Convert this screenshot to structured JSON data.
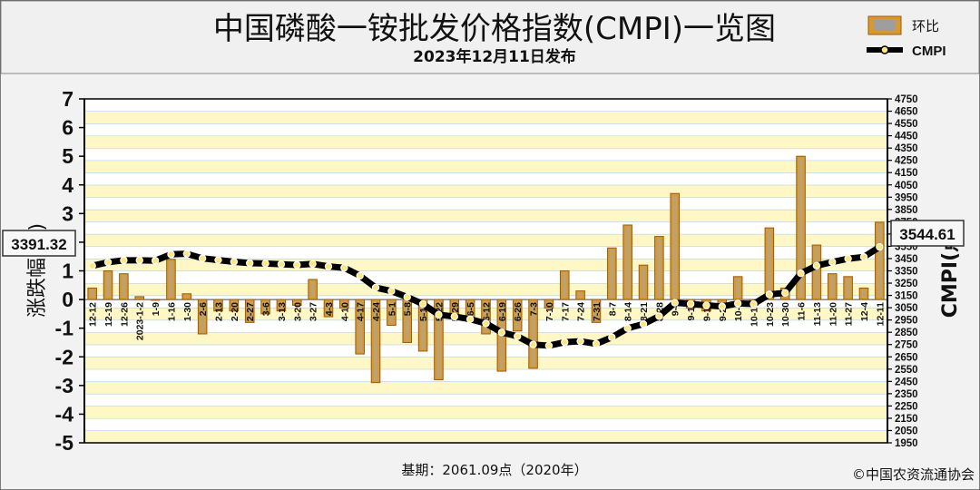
{
  "header": {
    "title": "中国磷酸一铵批发价格指数(CMPI)一览图",
    "subtitle": "2023年12月11日发布"
  },
  "legend": {
    "bar_label": "环比",
    "line_label": "CMPI"
  },
  "footer": {
    "base_note": "基期：2061.09点（2020年）",
    "copyright": "©中国农资流通协会"
  },
  "callouts": {
    "start_value": "3391.32",
    "end_value": "3544.61"
  },
  "colors": {
    "bar": "#d89a2e",
    "bar_edge": "#9a5a12",
    "band": "#fff7c6",
    "line": "#000000",
    "marker": "#ffe680"
  },
  "chart_data": {
    "type": "bar+line",
    "categories": [
      "12-12",
      "12-19",
      "12-26",
      "2023-1-2",
      "1-9",
      "1-16",
      "1-30",
      "2-6",
      "2-13",
      "2-20",
      "2-27",
      "3-6",
      "3-13",
      "3-20",
      "3-27",
      "4-3",
      "4-10",
      "4-17",
      "4-24",
      "5-1",
      "5-8",
      "5-15",
      "5-22",
      "5-29",
      "6-5",
      "6-12",
      "6-19",
      "6-26",
      "7-3",
      "7-10",
      "7-17",
      "7-24",
      "7-31",
      "8-7",
      "8-14",
      "8-21",
      "8-28",
      "9-4",
      "9-11",
      "9-18",
      "9-25",
      "10-9",
      "10-16",
      "10-23",
      "10-30",
      "11-6",
      "11-13",
      "11-20",
      "11-27",
      "12-4",
      "12-11"
    ],
    "series": [
      {
        "name": "环比",
        "axis": "left",
        "values": [
          0.4,
          1.0,
          0.9,
          0.1,
          0.0,
          1.4,
          0.2,
          -1.2,
          -0.4,
          -0.4,
          -0.8,
          -0.5,
          -0.4,
          -0.2,
          0.7,
          -0.6,
          -0.3,
          -1.9,
          -2.9,
          -0.9,
          -1.5,
          -1.8,
          -2.8,
          -0.5,
          -0.7,
          -1.2,
          -2.5,
          -1.1,
          -2.4,
          -0.3,
          1.0,
          0.3,
          -0.8,
          1.8,
          2.6,
          1.2,
          2.2,
          3.7,
          -0.3,
          -0.4,
          -0.3,
          0.8,
          -0.2,
          2.5,
          0.4,
          5.0,
          1.9,
          0.9,
          0.8,
          0.4,
          2.7
        ]
      },
      {
        "name": "CMPI",
        "axis": "right",
        "values": [
          3391.32,
          3420,
          3436,
          3436,
          3433,
          3485,
          3489,
          3452,
          3438,
          3424,
          3413,
          3410,
          3404,
          3398,
          3407,
          3386,
          3375,
          3310,
          3214,
          3185,
          3137,
          3080,
          2993,
          2978,
          2957,
          2922,
          2849,
          2817,
          2750,
          2741,
          2769,
          2777,
          2756,
          2809,
          2883,
          2917,
          2981,
          3090,
          3081,
          3069,
          3060,
          3085,
          3080,
          3158,
          3171,
          3330,
          3392,
          3422,
          3449,
          3463,
          3544.61
        ]
      }
    ],
    "y_left": {
      "label": "涨跌幅(%)",
      "min": -5,
      "max": 7,
      "ticks": [
        "-5",
        "-4",
        "-3",
        "-2",
        "-1",
        "0",
        "1",
        "2",
        "3",
        "4",
        "5",
        "6",
        "7"
      ]
    },
    "y_right": {
      "label": "CMPI(点)",
      "min": 1950,
      "max": 4750,
      "ticks": [
        "1950",
        "2050",
        "2150",
        "2250",
        "2350",
        "2450",
        "2550",
        "2650",
        "2750",
        "2850",
        "2950",
        "3050",
        "3150",
        "3250",
        "3350",
        "3450",
        "3550",
        "3650",
        "3750",
        "3850",
        "3950",
        "4050",
        "4150",
        "4250",
        "4350",
        "4450",
        "4550",
        "4650",
        "4750"
      ]
    },
    "grid": true,
    "legend_position": "top-right"
  }
}
